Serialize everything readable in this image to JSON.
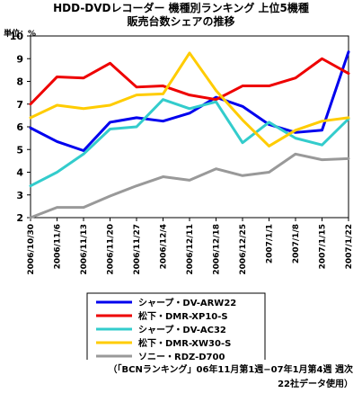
{
  "title_line1": "HDD-DVDレコーダー 機種別ランキング 上位5機種",
  "title_line2": "販売台数シェアの推移",
  "unit_label": "単位：%",
  "footnote_line1": "（「BCNランキング」06年11月第1週−07年1月第4週 週次",
  "footnote_line2": "22社データ使用）",
  "chart_data": {
    "type": "line",
    "categories": [
      "2006/10/30",
      "2006/11/6",
      "2006/11/13",
      "2006/11/20",
      "2006/11/27",
      "2006/12/4",
      "2006/12/11",
      "2006/12/18",
      "2006/12/25",
      "2007/1/1",
      "2007/1/8",
      "2007/1/15",
      "2007/1/22"
    ],
    "ylim": [
      2,
      10
    ],
    "yticks": [
      2,
      3,
      4,
      5,
      6,
      7,
      8,
      9,
      10
    ],
    "grid": false,
    "legend_position": "bottom",
    "series": [
      {
        "name": "シャープ・DV-ARW22",
        "color": "#0000ee",
        "values": [
          5.95,
          5.35,
          4.95,
          6.2,
          6.4,
          6.25,
          6.6,
          7.3,
          6.9,
          6.1,
          5.75,
          5.85,
          9.3
        ]
      },
      {
        "name": "松下・DMR-XP10-S",
        "color": "#ee0000",
        "values": [
          7.0,
          8.2,
          8.15,
          8.8,
          7.75,
          7.8,
          7.4,
          7.2,
          7.8,
          7.8,
          8.15,
          9.0,
          8.35
        ]
      },
      {
        "name": "シャープ・DV-AC32",
        "color": "#33cccc",
        "values": [
          3.4,
          4.0,
          4.8,
          5.9,
          6.0,
          7.2,
          6.8,
          7.1,
          5.3,
          6.2,
          5.5,
          5.2,
          6.35
        ]
      },
      {
        "name": "松下・DMR-XW30-S",
        "color": "#ffcc00",
        "values": [
          6.4,
          6.95,
          6.8,
          6.95,
          7.4,
          7.45,
          9.25,
          7.6,
          6.3,
          5.15,
          5.85,
          6.25,
          6.4
        ]
      },
      {
        "name": "ソニー・RDZ-D700",
        "color": "#999999",
        "values": [
          2.0,
          2.45,
          2.45,
          2.95,
          3.4,
          3.8,
          3.65,
          4.15,
          3.85,
          4.0,
          4.8,
          4.55,
          4.6
        ]
      }
    ]
  }
}
